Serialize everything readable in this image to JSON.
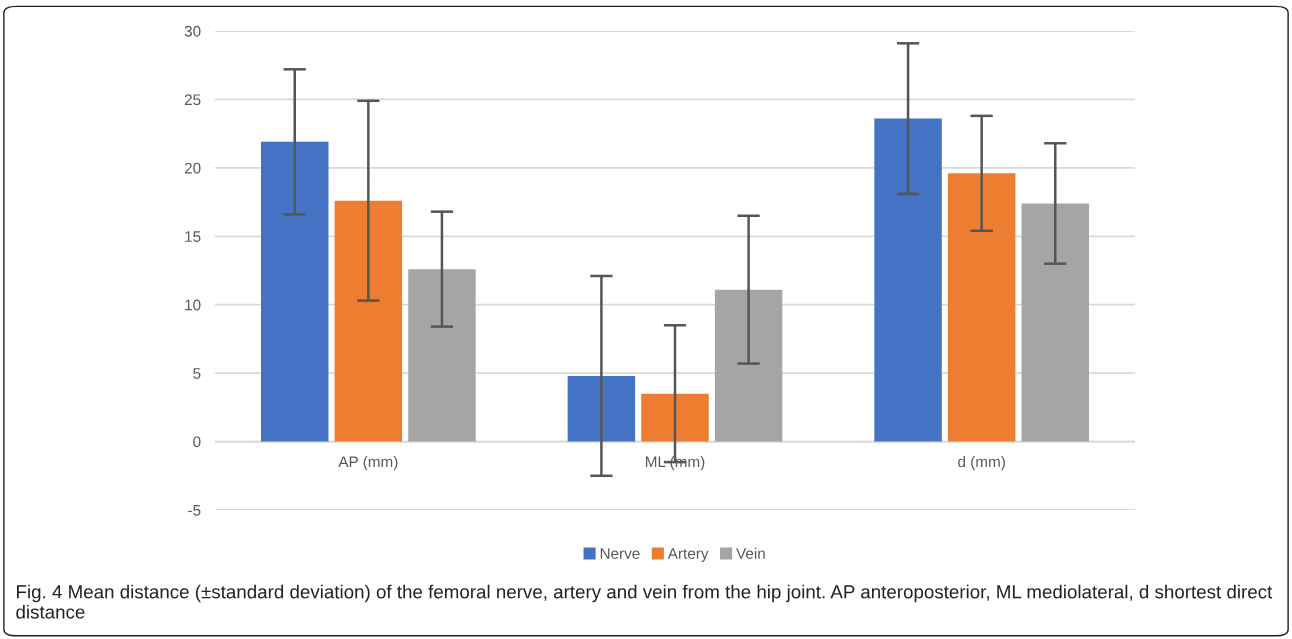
{
  "chart_data": {
    "type": "bar",
    "categories": [
      "AP (mm)",
      "ML (mm)",
      "d (mm)"
    ],
    "series": [
      {
        "name": "Nerve",
        "color": "#4472c4",
        "values": [
          21.9,
          4.8,
          23.6
        ],
        "errors": [
          5.3,
          7.3,
          5.5
        ]
      },
      {
        "name": "Artery",
        "color": "#ed7d31",
        "values": [
          17.6,
          3.5,
          19.6
        ],
        "errors": [
          7.3,
          5.0,
          4.2
        ]
      },
      {
        "name": "Vein",
        "color": "#a5a5a5",
        "values": [
          12.6,
          11.1,
          17.4
        ],
        "errors": [
          4.2,
          5.4,
          4.4
        ]
      }
    ],
    "ylim": [
      -5,
      30
    ],
    "yticks": [
      -5,
      0,
      5,
      10,
      15,
      20,
      25,
      30
    ],
    "grid": "y",
    "legend": "bottom",
    "annotations": [
      "Fig. 4 Mean distance (±standard deviation) of the femoral nerve, artery and vein from the hip joint. AP anteroposterior, ML mediolateral, d shortest direct distance"
    ]
  }
}
